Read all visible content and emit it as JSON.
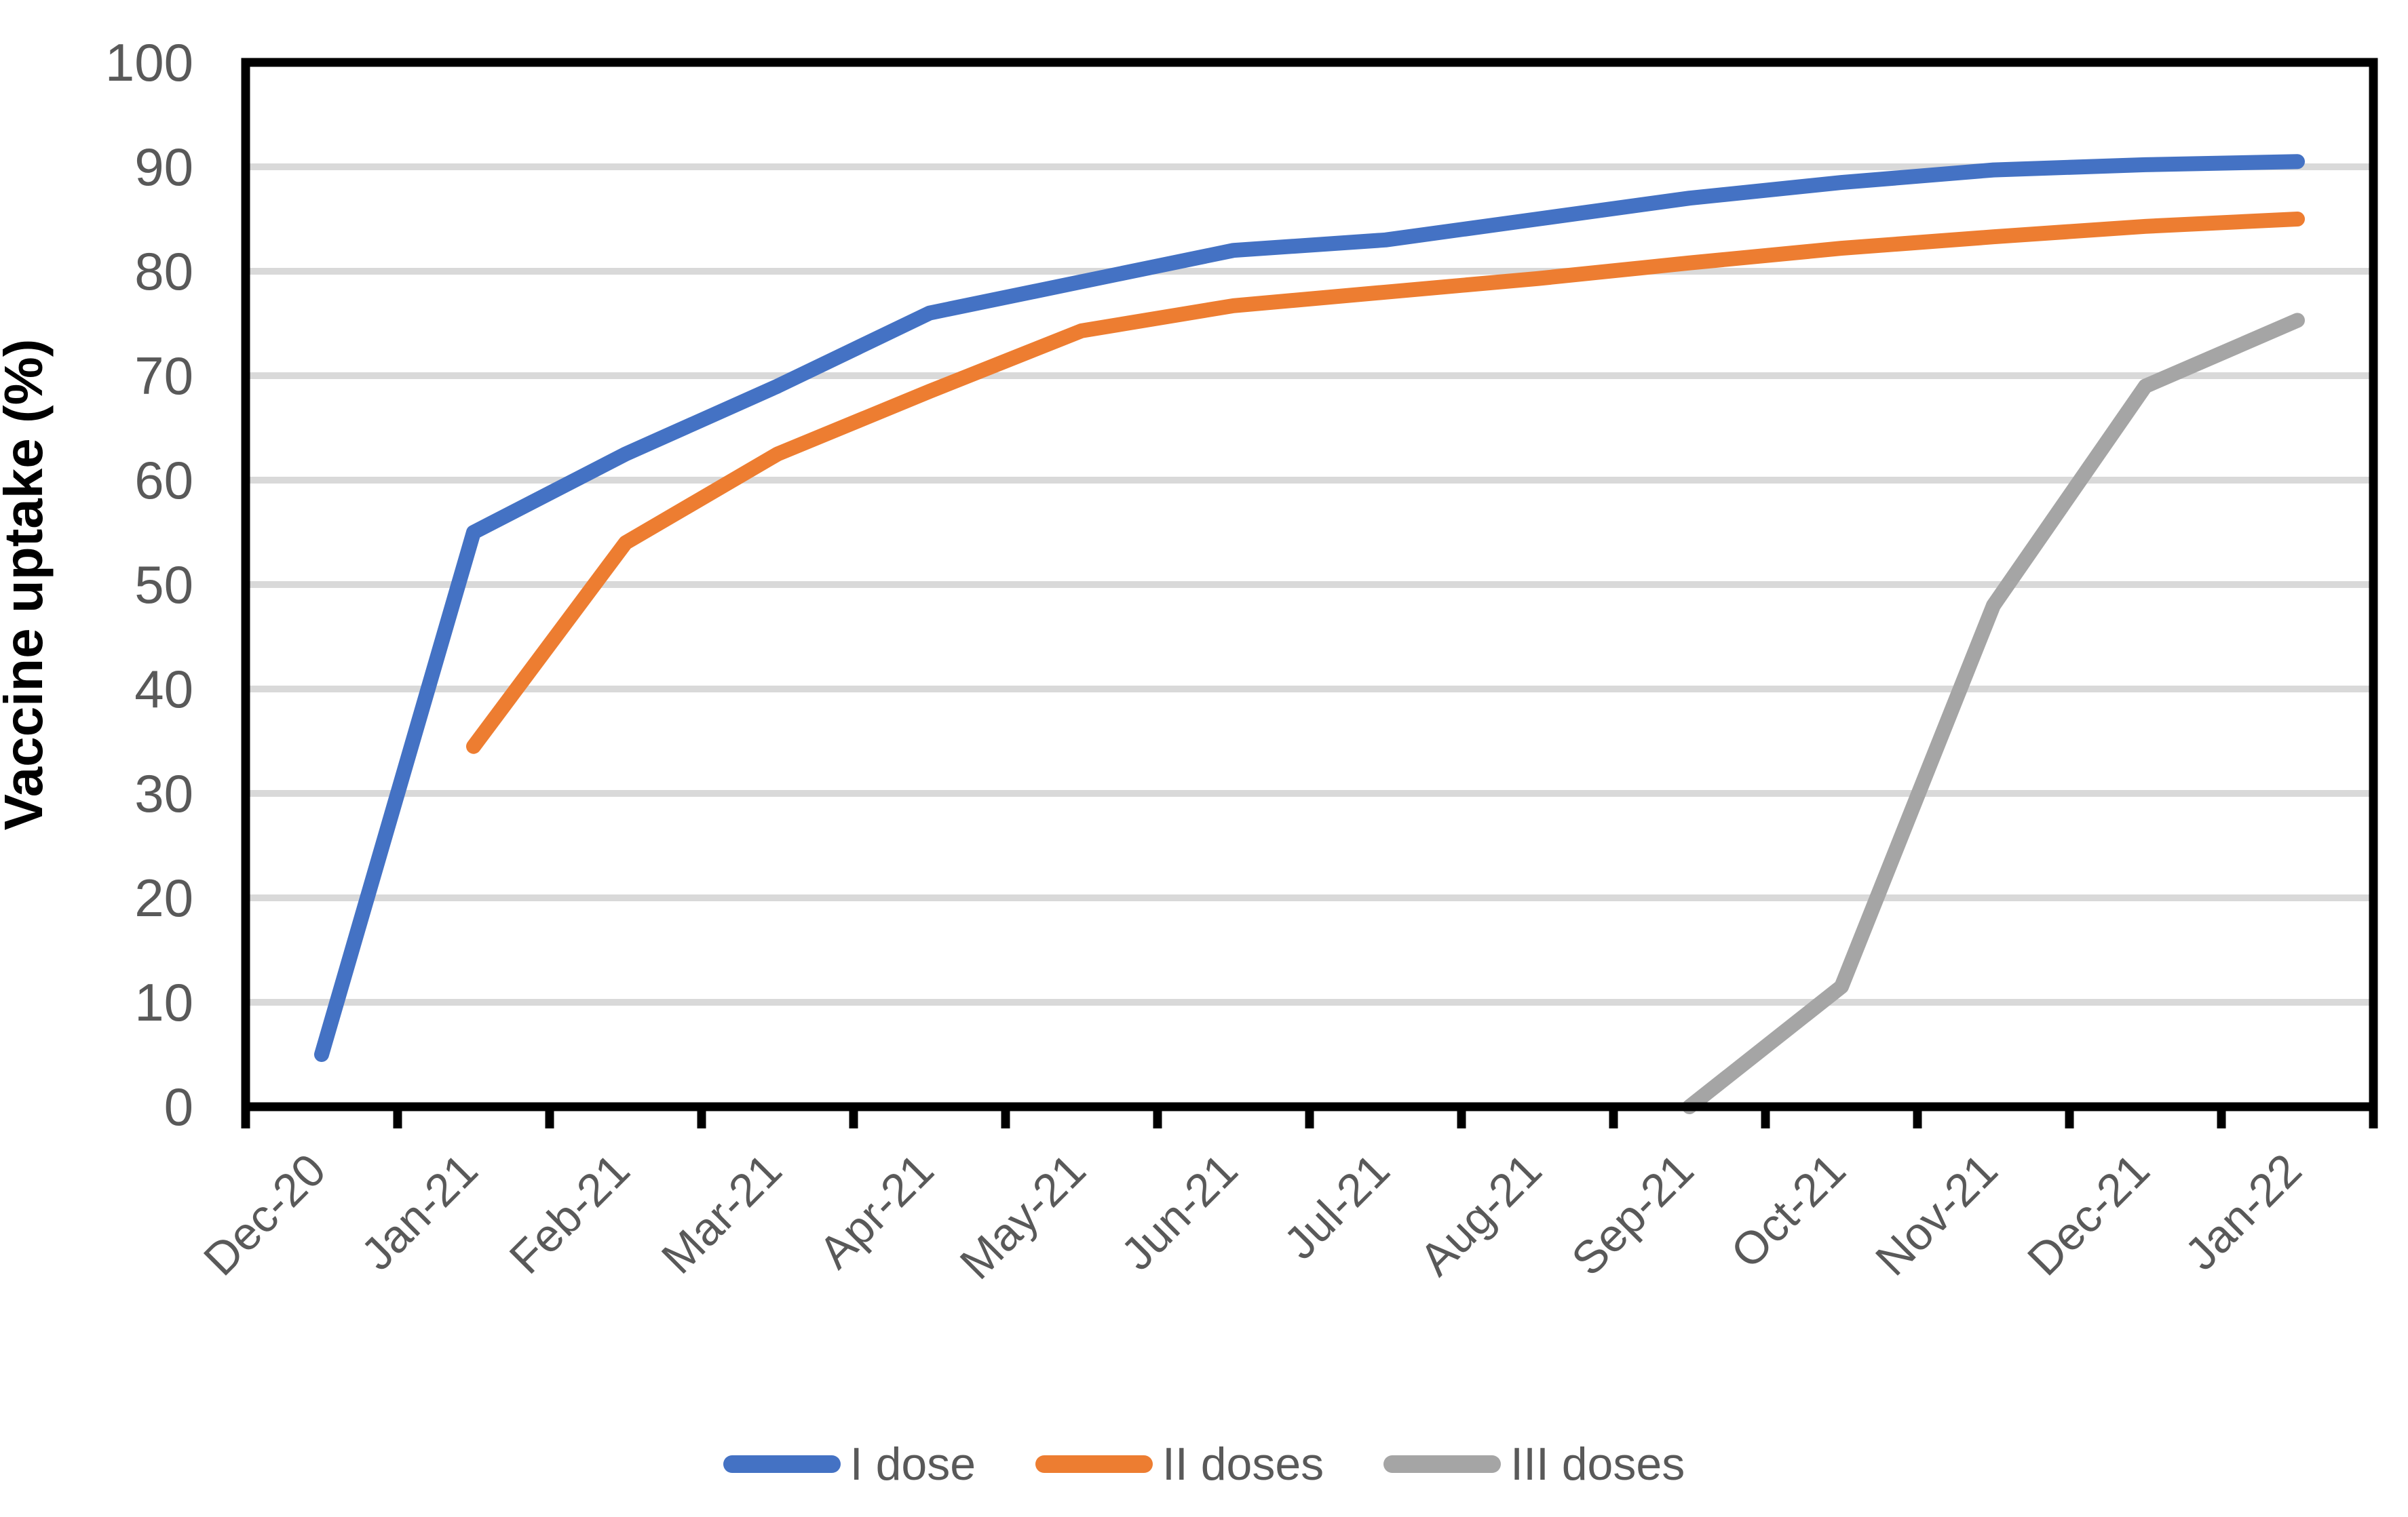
{
  "chart_data": {
    "type": "line",
    "title": "",
    "xlabel": "",
    "ylabel": "Vaccine uptake (%)",
    "ylim": [
      0,
      100
    ],
    "ytick_step": 10,
    "yticks": [
      "0",
      "10",
      "20",
      "30",
      "40",
      "50",
      "60",
      "70",
      "80",
      "90",
      "100"
    ],
    "categories": [
      "Dec-20",
      "Jan-21",
      "Feb-21",
      "Mar-21",
      "Apr-21",
      "May-21",
      "Jun-21",
      "Jul-21",
      "Aug-21",
      "Sep-21",
      "Oct-21",
      "Nov-21",
      "Dec-21",
      "Jan-22"
    ],
    "grid": true,
    "legend_position": "bottom",
    "series": [
      {
        "name": "I dose",
        "color": "#4472C4",
        "values": [
          5,
          55,
          62.5,
          69,
          76,
          79,
          82,
          83,
          85,
          87,
          88.5,
          89.7,
          90.2,
          90.5
        ]
      },
      {
        "name": "II doses",
        "color": "#ED7D31",
        "values": [
          null,
          34.5,
          54,
          62.5,
          68.5,
          74.3,
          76.7,
          78,
          79.3,
          80.8,
          82.2,
          83.3,
          84.3,
          85
        ]
      },
      {
        "name": "III doses",
        "color": "#A5A5A5",
        "values": [
          null,
          null,
          null,
          null,
          null,
          null,
          null,
          null,
          null,
          0,
          11.5,
          48,
          69,
          75.3
        ]
      }
    ]
  },
  "styles": {
    "gridline_color": "#D9D9D9",
    "axis_border_color": "#000000",
    "tick_label_color": "#595959",
    "axis_title_color": "#000000",
    "background_color": "#FFFFFF"
  }
}
